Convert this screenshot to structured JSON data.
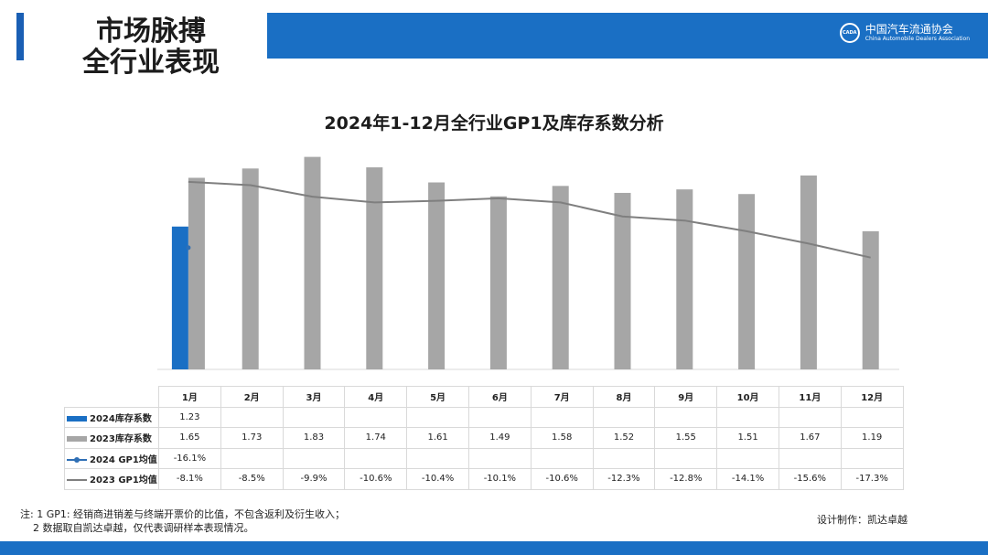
{
  "header": {
    "title_line1": "市场脉搏",
    "title_line2": "全行业表现",
    "logo_cn": "中国汽车流通协会",
    "logo_en": "China Automobile Dealers Association",
    "logo_mark": "CADA"
  },
  "chart_data": {
    "type": "bar",
    "title": "2024年1-12月全行业GP1及库存系数分析",
    "categories": [
      "1月",
      "2月",
      "3月",
      "4月",
      "5月",
      "6月",
      "7月",
      "8月",
      "9月",
      "10月",
      "11月",
      "12月"
    ],
    "series": [
      {
        "name": "2024库存系数",
        "kind": "bar",
        "color": "#1a6fc4",
        "values": [
          1.23,
          null,
          null,
          null,
          null,
          null,
          null,
          null,
          null,
          null,
          null,
          null
        ],
        "display": [
          "1.23",
          "",
          "",
          "",
          "",
          "",
          "",
          "",
          "",
          "",
          "",
          ""
        ]
      },
      {
        "name": "2023库存系数",
        "kind": "bar",
        "color": "#a6a6a6",
        "values": [
          1.65,
          1.73,
          1.83,
          1.74,
          1.61,
          1.49,
          1.58,
          1.52,
          1.55,
          1.51,
          1.67,
          1.19
        ],
        "display": [
          "1.65",
          "1.73",
          "1.83",
          "1.74",
          "1.61",
          "1.49",
          "1.58",
          "1.52",
          "1.55",
          "1.51",
          "1.67",
          "1.19"
        ]
      },
      {
        "name": "2024 GP1均值",
        "kind": "line",
        "color": "#2f6fb5",
        "values": [
          -16.1,
          null,
          null,
          null,
          null,
          null,
          null,
          null,
          null,
          null,
          null,
          null
        ],
        "display": [
          "-16.1%",
          "",
          "",
          "",
          "",
          "",
          "",
          "",
          "",
          "",
          "",
          ""
        ]
      },
      {
        "name": "2023 GP1均值",
        "kind": "line",
        "color": "#7f7f7f",
        "values": [
          -8.1,
          -8.5,
          -9.9,
          -10.6,
          -10.4,
          -10.1,
          -10.6,
          -12.3,
          -12.8,
          -14.1,
          -15.6,
          -17.3
        ],
        "display": [
          "-8.1%",
          "-8.5%",
          "-9.9%",
          "-10.6%",
          "-10.4%",
          "-10.1%",
          "-10.6%",
          "-12.3%",
          "-12.8%",
          "-14.1%",
          "-15.6%",
          "-17.3%"
        ]
      }
    ],
    "ylim_bar": [
      0,
      2
    ],
    "ylim_line": [
      -26,
      -6
    ],
    "grid": false,
    "legend": "table-bottom"
  },
  "notes": {
    "line1": "注: 1  GP1: 经销商进销差与终端开票价的比值，不包含返利及衍生收入；",
    "line2": "2  数据取自凯达卓越，仅代表调研样本表现情况。"
  },
  "credit": "设计制作：凯达卓越",
  "colors": {
    "accent": "#1a6fc4",
    "bar_2023": "#a6a6a6",
    "line_2023": "#7f7f7f"
  }
}
